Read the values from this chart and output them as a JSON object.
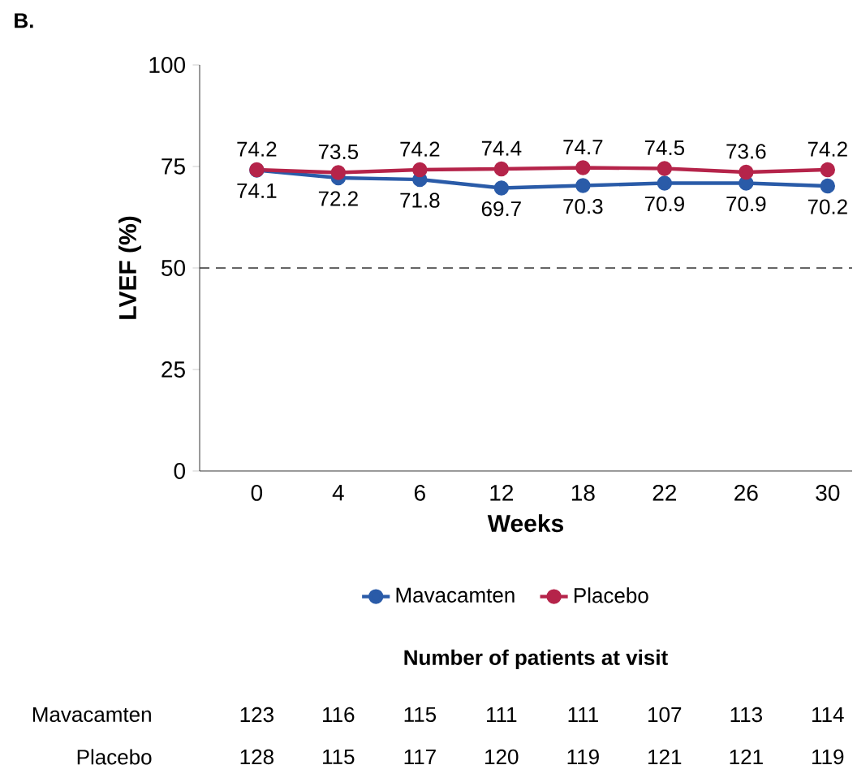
{
  "chart_data": {
    "type": "line",
    "xlabel": "Weeks",
    "ylabel": "LVEF (%)",
    "categories": [
      "0",
      "4",
      "6",
      "12",
      "18",
      "22",
      "26",
      "30"
    ],
    "series": [
      {
        "name": "Mavacamten",
        "color": "#2a5ba8",
        "values": [
          74.1,
          72.2,
          71.8,
          69.7,
          70.3,
          70.9,
          70.9,
          70.2
        ]
      },
      {
        "name": "Placebo",
        "color": "#b5244a",
        "values": [
          74.2,
          73.5,
          74.2,
          74.4,
          74.7,
          74.5,
          73.6,
          74.2
        ]
      }
    ],
    "ylim": [
      0,
      100
    ],
    "yticks": [
      0,
      25,
      50,
      75,
      100
    ],
    "ref_lines": [
      {
        "axis": "y",
        "value": 50,
        "line_style": "dashed",
        "color": "#333333"
      }
    ],
    "data_labels": true,
    "grid": false,
    "legend": "bottom",
    "marker": "circle",
    "line_style": "solid",
    "annotations": [
      "B.",
      "Number of patients at visit",
      "Mavacamten",
      "123",
      "116",
      "115",
      "111",
      "111",
      "107",
      "113",
      "114",
      "Placebo",
      "128",
      "115",
      "117",
      "120",
      "119",
      "121",
      "121",
      "119"
    ]
  }
}
